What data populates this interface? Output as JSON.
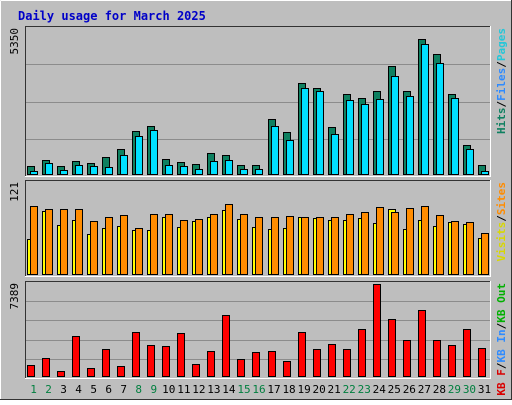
{
  "colors": {
    "background": "#BEBEBE",
    "title": "#0000C8",
    "grid": "#8C8C8C",
    "hits": "#0E8060",
    "files": "#00E0FF",
    "pages": "#26C6D8",
    "visits": "#FFFF00",
    "sites": "#FF8C00",
    "kb_in": "#00B000",
    "kb_out": "#2E8BFF",
    "kb_f": "#D80000",
    "day_weekday": "#000000",
    "day_weekend": "#007F3F"
  },
  "chart_data": {
    "type": "bar",
    "title": "Daily usage for March 2025",
    "categories": [
      "1",
      "2",
      "3",
      "4",
      "5",
      "6",
      "7",
      "8",
      "9",
      "10",
      "11",
      "12",
      "13",
      "14",
      "15",
      "16",
      "17",
      "18",
      "19",
      "20",
      "21",
      "22",
      "23",
      "24",
      "25",
      "26",
      "27",
      "28",
      "29",
      "30",
      "31"
    ],
    "weekend_days": [
      "1",
      "2",
      "8",
      "9",
      "15",
      "16",
      "22",
      "23",
      "29",
      "30"
    ],
    "panels": [
      {
        "id": "requests",
        "ymax_label": "5350",
        "ylim": [
          0,
          5350
        ],
        "legend": [
          {
            "text": "Hits",
            "color": "#0E8060"
          },
          {
            "text": "/",
            "color": "#000000"
          },
          {
            "text": "Files",
            "color": "#2E8BFF"
          },
          {
            "text": "/",
            "color": "#000000"
          },
          {
            "text": "Pages",
            "color": "#26C6D8"
          }
        ],
        "series": [
          {
            "name": "Hits",
            "color": "#0E8060",
            "values": [
              340,
              550,
              310,
              520,
              430,
              640,
              950,
              1590,
              1800,
              580,
              480,
              400,
              800,
              710,
              370,
              360,
              2050,
              1580,
              3350,
              3160,
              1730,
              2930,
              2810,
              3060,
              3980,
              3070,
              4940,
              4400,
              2960,
              1100,
              380
            ]
          },
          {
            "name": "Files",
            "color": "#00E0FF",
            "values": [
              140,
              440,
              180,
              380,
              330,
              290,
              720,
              1420,
              1650,
              380,
              330,
              230,
              520,
              530,
              210,
              220,
              1780,
              1270,
              3170,
              3050,
              1500,
              2720,
              2580,
              2770,
              3620,
              2890,
              4750,
              4070,
              2790,
              950,
              160
            ]
          }
        ]
      },
      {
        "id": "sites",
        "ymax_label": "121",
        "ylim": [
          0,
          121
        ],
        "legend": [
          {
            "text": "Visits",
            "color": "#D8D800"
          },
          {
            "text": "/",
            "color": "#000000"
          },
          {
            "text": "Sites",
            "color": "#FF8C00"
          }
        ],
        "series": [
          {
            "name": "Visits",
            "color": "#FFFF00",
            "values": [
              47,
              83,
              65,
              72,
              53,
              61,
              64,
              58,
              58,
              75,
              62,
              70,
              75,
              85,
              73,
              62,
              60,
              61,
              76,
              74,
              71,
              71,
              74,
              68,
              86,
              60,
              71,
              64,
              69,
              67,
              48
            ]
          },
          {
            "name": "Sites",
            "color": "#FF8C00",
            "values": [
              90,
              86,
              86,
              86,
              70,
              76,
              78,
              61,
              80,
              79,
              72,
              73,
              80,
              93,
              80,
              76,
              75,
              77,
              76,
              75,
              76,
              79,
              82,
              89,
              82,
              87,
              90,
              78,
              70,
              69,
              54
            ]
          }
        ]
      },
      {
        "id": "volume",
        "ymax_label": "7389",
        "ylim": [
          0,
          7389
        ],
        "legend": [
          {
            "text": "KB F",
            "color": "#D80000"
          },
          {
            "text": "/",
            "color": "#000000"
          },
          {
            "text": "KB In",
            "color": "#2E8BFF"
          },
          {
            "text": "/",
            "color": "#000000"
          },
          {
            "text": "KB Out",
            "color": "#00B000"
          }
        ],
        "series": [
          {
            "name": "KB F",
            "color": "#FF0000",
            "values": [
              950,
              1500,
              500,
              3260,
              700,
              2220,
              850,
              3540,
              2550,
              2450,
              3480,
              1000,
              2020,
              4850,
              1450,
              1940,
              2010,
              1250,
              3520,
              2220,
              2600,
              2170,
              3740,
              7300,
              4590,
              2930,
              5300,
              2940,
              2500,
              3740,
              2280
            ]
          }
        ]
      }
    ]
  }
}
